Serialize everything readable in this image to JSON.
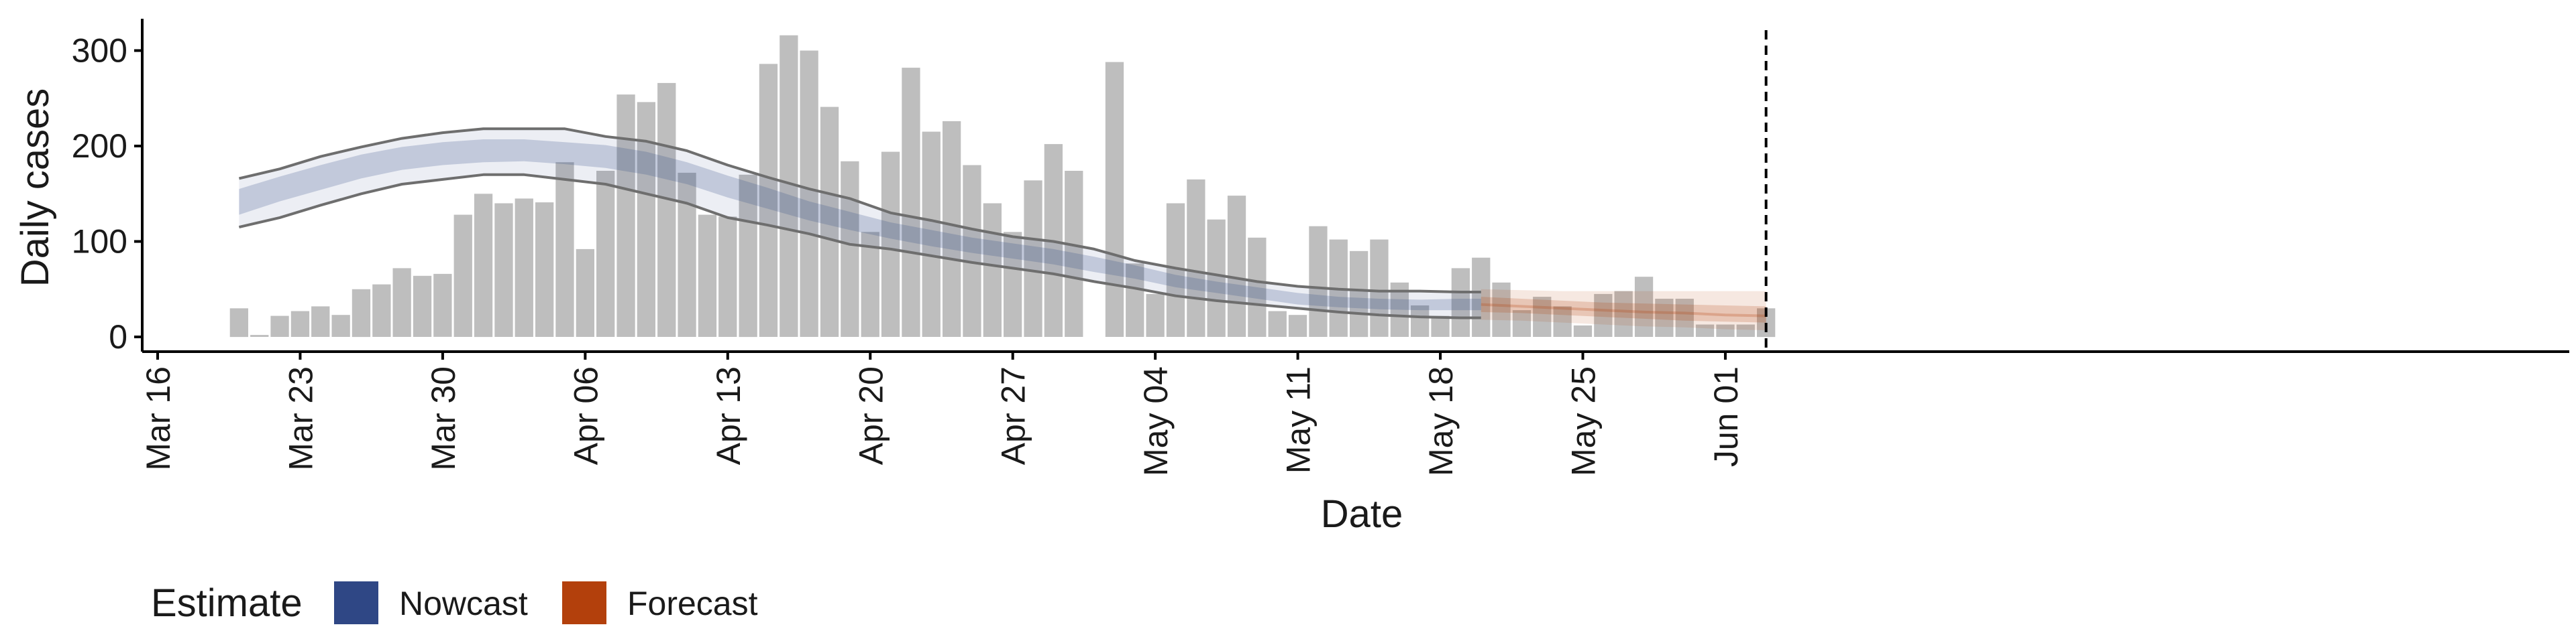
{
  "colors": {
    "bar": "#bebebe",
    "nowcast": "#2f4785",
    "forecast": "#b3400c",
    "line": "#6e6e6e",
    "axis": "#000000"
  },
  "chart_data": {
    "type": "bar",
    "xlabel": "Date",
    "ylabel": "Daily cases",
    "x_ticks": [
      "Mar 16",
      "Mar 23",
      "Mar 30",
      "Apr 06",
      "Apr 13",
      "Apr 20",
      "Apr 27",
      "May 04",
      "May 11",
      "May 18",
      "May 25",
      "Jun 01"
    ],
    "y_ticks": [
      "0",
      "100",
      "200",
      "300"
    ],
    "ylim": [
      -15,
      330
    ],
    "x_start": "2020-03-16",
    "legend": {
      "title": "Estimate",
      "items": [
        "Nowcast",
        "Forecast"
      ],
      "position": "bottom-left"
    },
    "bars": {
      "start_date": "2020-03-20",
      "values": [
        30,
        2,
        22,
        27,
        32,
        23,
        50,
        55,
        72,
        64,
        66,
        128,
        150,
        140,
        145,
        141,
        183,
        92,
        174,
        254,
        246,
        266,
        172,
        128,
        126,
        170,
        286,
        316,
        300,
        241,
        184,
        110,
        194,
        282,
        215,
        226,
        180,
        140,
        110,
        164,
        202,
        174,
        0,
        288,
        77,
        45,
        140,
        165,
        123,
        148,
        104,
        27,
        23,
        116,
        102,
        90,
        102,
        57,
        33,
        22,
        72,
        83,
        57,
        28,
        42,
        32,
        12,
        45,
        48,
        63,
        40,
        40,
        13,
        13,
        13,
        30
      ]
    },
    "reference_line_date": "2020-06-03",
    "nowcast": {
      "dates": [
        "2020-03-20",
        "2020-03-22",
        "2020-03-24",
        "2020-03-26",
        "2020-03-28",
        "2020-03-30",
        "2020-04-01",
        "2020-04-03",
        "2020-04-05",
        "2020-04-07",
        "2020-04-09",
        "2020-04-11",
        "2020-04-13",
        "2020-04-15",
        "2020-04-17",
        "2020-04-19",
        "2020-04-21",
        "2020-04-23",
        "2020-04-25",
        "2020-04-27",
        "2020-04-29",
        "2020-05-01",
        "2020-05-03",
        "2020-05-05",
        "2020-05-07",
        "2020-05-09",
        "2020-05-11",
        "2020-05-13",
        "2020-05-15",
        "2020-05-17",
        "2020-05-19",
        "2020-05-20"
      ],
      "median": [
        142,
        156,
        168,
        180,
        188,
        192,
        196,
        196,
        193,
        190,
        183,
        172,
        158,
        145,
        132,
        122,
        112,
        104,
        96,
        90,
        84,
        76,
        68,
        58,
        52,
        46,
        40,
        36,
        34,
        33,
        34,
        34
      ],
      "inner_lower": [
        128,
        142,
        154,
        166,
        175,
        180,
        183,
        184,
        181,
        177,
        170,
        160,
        146,
        134,
        122,
        112,
        103,
        95,
        88,
        82,
        76,
        68,
        61,
        52,
        46,
        40,
        34,
        31,
        29,
        28,
        28,
        28
      ],
      "inner_upper": [
        155,
        168,
        180,
        191,
        199,
        204,
        207,
        207,
        204,
        201,
        194,
        183,
        169,
        156,
        142,
        131,
        120,
        112,
        104,
        98,
        92,
        84,
        75,
        65,
        58,
        52,
        46,
        42,
        40,
        39,
        40,
        40
      ],
      "outer_lower": [
        115,
        125,
        138,
        150,
        160,
        165,
        170,
        170,
        165,
        160,
        150,
        140,
        125,
        117,
        108,
        97,
        92,
        85,
        78,
        72,
        66,
        58,
        51,
        43,
        38,
        34,
        30,
        26,
        23,
        21,
        20,
        20
      ],
      "outer_upper": [
        166,
        176,
        189,
        199,
        208,
        214,
        218,
        218,
        218,
        210,
        205,
        195,
        180,
        167,
        155,
        145,
        130,
        122,
        113,
        105,
        100,
        92,
        80,
        72,
        65,
        58,
        53,
        50,
        48,
        48,
        47,
        47
      ]
    },
    "forecast": {
      "dates": [
        "2020-05-20",
        "2020-05-22",
        "2020-05-24",
        "2020-05-26",
        "2020-05-28",
        "2020-05-30",
        "2020-06-01",
        "2020-06-03"
      ],
      "median": [
        34,
        32,
        30,
        28,
        26,
        25,
        23,
        22
      ],
      "inner_lower": [
        26,
        25,
        23,
        21,
        19,
        17,
        16,
        15
      ],
      "inner_upper": [
        42,
        40,
        38,
        36,
        35,
        34,
        33,
        32
      ],
      "outer_lower": [
        18,
        17,
        15,
        13,
        11,
        10,
        8,
        7
      ],
      "outer_upper": [
        50,
        49,
        48,
        48,
        48,
        48,
        48,
        48
      ]
    }
  }
}
